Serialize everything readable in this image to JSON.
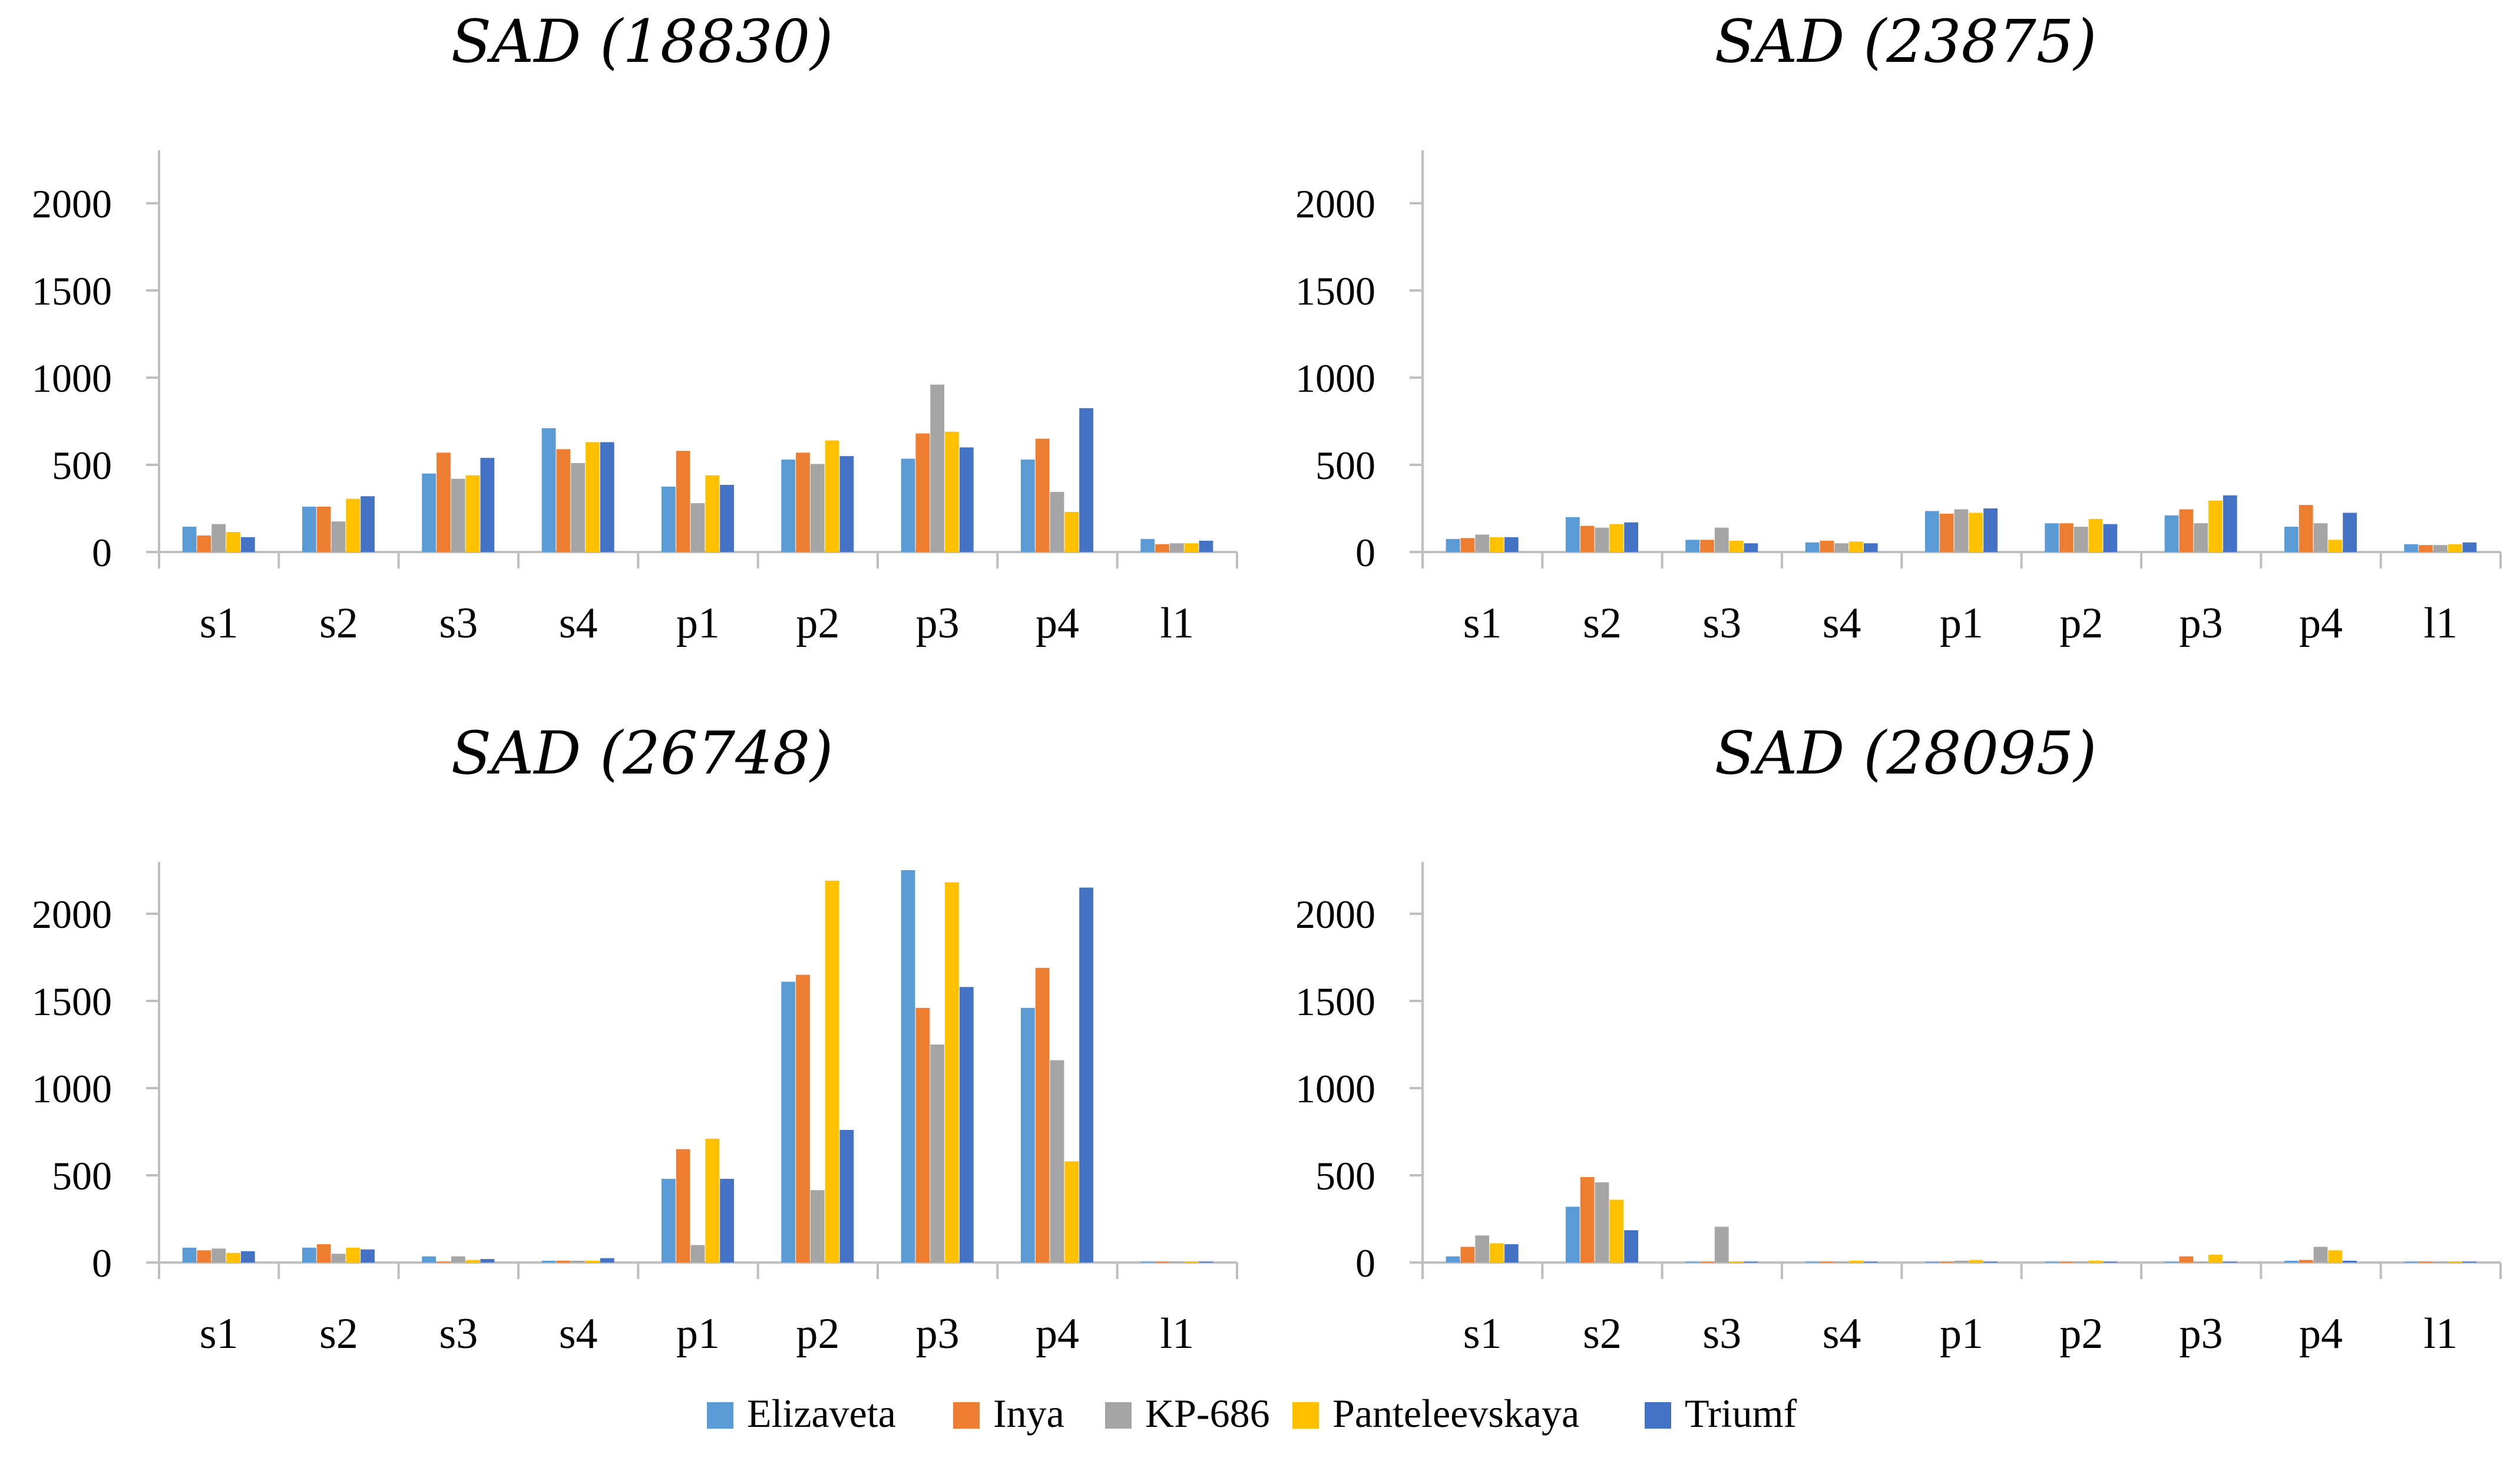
{
  "chart_data": [
    {
      "type": "bar",
      "title": "SAD (18830)",
      "categories": [
        "s1",
        "s2",
        "s3",
        "s4",
        "p1",
        "p2",
        "p3",
        "p4",
        "l1"
      ],
      "ylim": [
        0,
        2300
      ],
      "yticks": [
        0,
        500,
        1000,
        1500,
        2000
      ],
      "series": [
        {
          "name": "Elizaveta",
          "values": [
            145,
            260,
            450,
            710,
            375,
            530,
            535,
            530,
            75
          ]
        },
        {
          "name": "Inya",
          "values": [
            95,
            260,
            570,
            590,
            580,
            570,
            680,
            650,
            45
          ]
        },
        {
          "name": "KP-686",
          "values": [
            160,
            175,
            420,
            510,
            280,
            505,
            960,
            345,
            50
          ]
        },
        {
          "name": "Panteleevskaya",
          "values": [
            115,
            305,
            440,
            630,
            440,
            640,
            690,
            230,
            50
          ]
        },
        {
          "name": "Triumf",
          "values": [
            85,
            320,
            540,
            630,
            385,
            550,
            600,
            825,
            65
          ]
        }
      ]
    },
    {
      "type": "bar",
      "title": "SAD (23875)",
      "categories": [
        "s1",
        "s2",
        "s3",
        "s4",
        "p1",
        "p2",
        "p3",
        "p4",
        "l1"
      ],
      "ylim": [
        0,
        2300
      ],
      "yticks": [
        0,
        500,
        1000,
        1500,
        2000
      ],
      "series": [
        {
          "name": "Elizaveta",
          "values": [
            75,
            200,
            70,
            55,
            235,
            165,
            210,
            145,
            45
          ]
        },
        {
          "name": "Inya",
          "values": [
            80,
            150,
            70,
            65,
            220,
            165,
            245,
            270,
            40
          ]
        },
        {
          "name": "KP-686",
          "values": [
            100,
            140,
            140,
            50,
            245,
            145,
            165,
            165,
            40
          ]
        },
        {
          "name": "Panteleevskaya",
          "values": [
            85,
            160,
            65,
            60,
            225,
            190,
            295,
            70,
            45
          ]
        },
        {
          "name": "Triumf",
          "values": [
            85,
            170,
            50,
            50,
            250,
            160,
            325,
            225,
            55
          ]
        }
      ]
    },
    {
      "type": "bar",
      "title": "SAD (26748)",
      "categories": [
        "s1",
        "s2",
        "s3",
        "s4",
        "p1",
        "p2",
        "p3",
        "p4",
        "l1"
      ],
      "ylim": [
        0,
        2300
      ],
      "yticks": [
        0,
        500,
        1000,
        1500,
        2000
      ],
      "series": [
        {
          "name": "Elizaveta",
          "values": [
            85,
            85,
            35,
            10,
            480,
            1610,
            2250,
            1460,
            5
          ]
        },
        {
          "name": "Inya",
          "values": [
            70,
            105,
            5,
            10,
            650,
            1650,
            1460,
            1690,
            5
          ]
        },
        {
          "name": "KP-686",
          "values": [
            80,
            50,
            35,
            10,
            100,
            415,
            1250,
            1160,
            5
          ]
        },
        {
          "name": "Panteleevskaya",
          "values": [
            55,
            85,
            15,
            10,
            710,
            2190,
            2180,
            580,
            5
          ]
        },
        {
          "name": "Triumf",
          "values": [
            65,
            75,
            20,
            25,
            480,
            760,
            1580,
            2150,
            5
          ]
        }
      ]
    },
    {
      "type": "bar",
      "title": "SAD (28095)",
      "categories": [
        "s1",
        "s2",
        "s3",
        "s4",
        "p1",
        "p2",
        "p3",
        "p4",
        "l1"
      ],
      "ylim": [
        0,
        2300
      ],
      "yticks": [
        0,
        500,
        1000,
        1500,
        2000
      ],
      "series": [
        {
          "name": "Elizaveta",
          "values": [
            35,
            320,
            5,
            5,
            5,
            5,
            5,
            10,
            5
          ]
        },
        {
          "name": "Inya",
          "values": [
            90,
            490,
            5,
            5,
            5,
            5,
            35,
            15,
            5
          ]
        },
        {
          "name": "KP-686",
          "values": [
            155,
            460,
            205,
            5,
            10,
            5,
            5,
            90,
            5
          ]
        },
        {
          "name": "Panteleevskaya",
          "values": [
            110,
            360,
            5,
            10,
            15,
            10,
            45,
            70,
            5
          ]
        },
        {
          "name": "Triumf",
          "values": [
            105,
            185,
            5,
            5,
            5,
            5,
            5,
            10,
            5
          ]
        }
      ]
    }
  ],
  "legend": [
    {
      "name": "Elizaveta",
      "color": "#5b9bd5"
    },
    {
      "name": "Inya",
      "color": "#ed7d31"
    },
    {
      "name": "KP-686",
      "color": "#a5a5a5"
    },
    {
      "name": "Panteleevskaya",
      "color": "#ffc000"
    },
    {
      "name": "Triumf",
      "color": "#4472c4"
    }
  ],
  "colors": {
    "axis": "#bfbfbf",
    "text": "#000000"
  }
}
